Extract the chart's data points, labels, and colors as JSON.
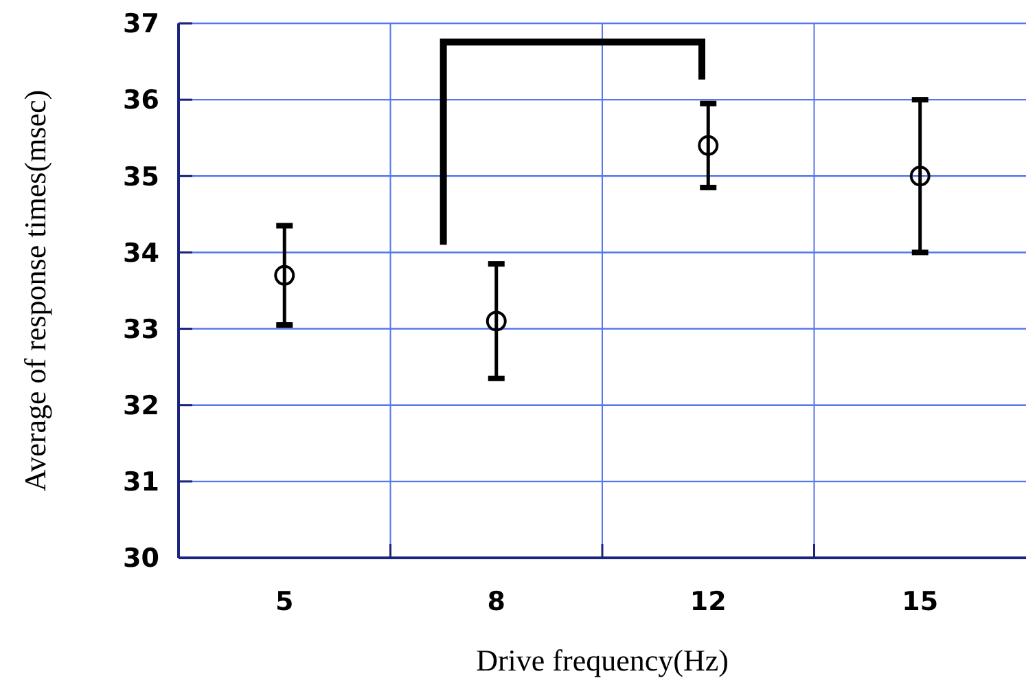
{
  "chart_data": {
    "type": "scatter",
    "xlabel": "Drive frequency(Hz)",
    "ylabel": "Average of response times(msec)",
    "categories": [
      "5",
      "8",
      "12",
      "15"
    ],
    "series": [
      {
        "color": "#000000",
        "values": [
          33.7,
          33.1,
          35.4,
          35.0
        ],
        "errors": [
          [
            33.05,
            34.35
          ],
          [
            32.35,
            33.85
          ],
          [
            34.85,
            35.95
          ],
          [
            34.0,
            36.0
          ]
        ]
      }
    ],
    "ylim": [
      30,
      37
    ],
    "yticks": [
      30,
      31,
      32,
      33,
      34,
      35,
      36,
      37
    ],
    "grid": true,
    "marker": "circle"
  }
}
